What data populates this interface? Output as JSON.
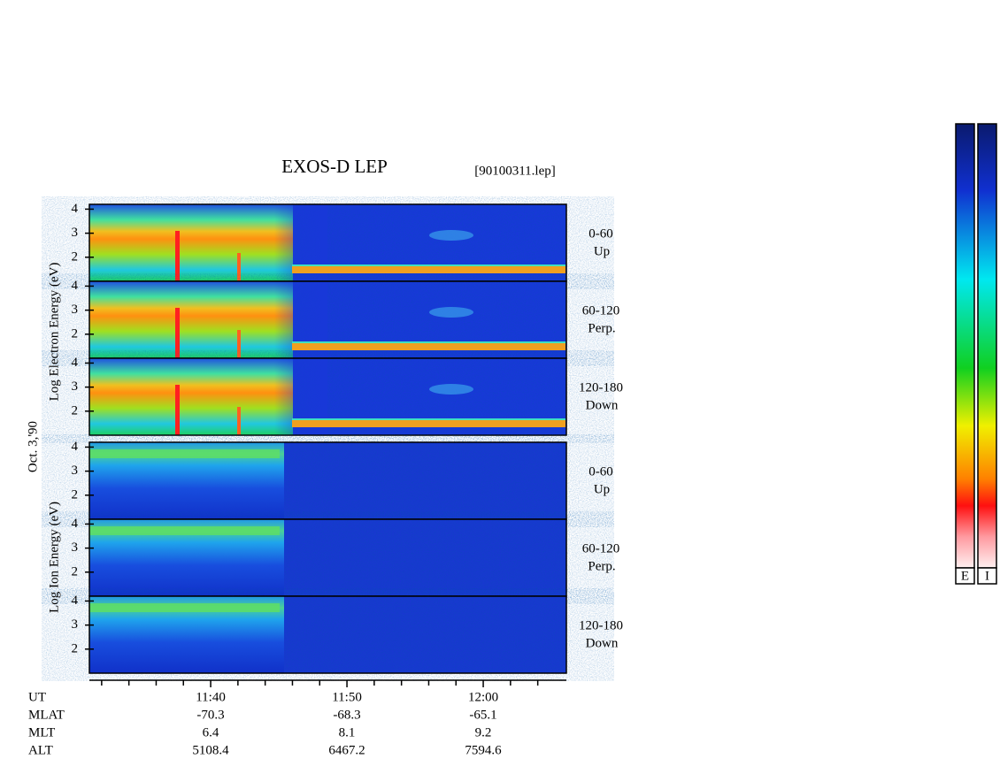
{
  "chart_data": {
    "type": "spectrogram",
    "title": "EXOS-D LEP",
    "subtitle": "[90100311.lep]",
    "date_label": "Oct. 3,'90",
    "groups": [
      {
        "label": "Log Electron Energy (eV)",
        "panels": [
          {
            "angle": "0-60",
            "direction": "Up"
          },
          {
            "angle": "60-120",
            "direction": "Perp."
          },
          {
            "angle": "120-180",
            "direction": "Down"
          }
        ]
      },
      {
        "label": "Log Ion Energy (eV)",
        "panels": [
          {
            "angle": "0-60",
            "direction": "Up"
          },
          {
            "angle": "60-120",
            "direction": "Perp."
          },
          {
            "angle": "120-180",
            "direction": "Down"
          }
        ]
      }
    ],
    "ylim": [
      1,
      4.2
    ],
    "yticks": [
      2,
      3,
      4
    ],
    "xlim": [
      691.1,
      726.1
    ],
    "xticks": [
      {
        "value": 700,
        "label": "11:40"
      },
      {
        "value": 710,
        "label": "11:50"
      },
      {
        "value": 720,
        "label": "12:00"
      }
    ],
    "xminorticks": [
      692,
      694,
      696,
      698,
      702,
      704,
      706,
      708,
      712,
      714,
      716,
      718,
      722,
      724
    ],
    "ephemeris": {
      "labels": [
        "UT",
        "MLAT",
        "MLT",
        "ALT"
      ],
      "rows": [
        [
          -70.3,
          -68.3,
          -65.1
        ],
        [
          6.4,
          8.1,
          9.2
        ],
        [
          5108.4,
          6467.2,
          7594.6
        ]
      ]
    },
    "colorbars": [
      "E",
      "I"
    ]
  }
}
